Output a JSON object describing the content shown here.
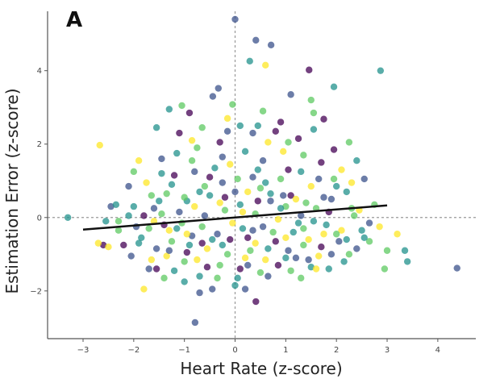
{
  "chart_data": {
    "type": "scatter",
    "panel_label": "A",
    "title": "",
    "xlabel": "Heart Rate (z-score)",
    "ylabel": "Estimation Error (z-score)",
    "xlim": [
      -3.7,
      4.75
    ],
    "ylim": [
      -3.3,
      5.75
    ],
    "xticks": [
      -3,
      -2,
      -1,
      0,
      1,
      2,
      3,
      4
    ],
    "yticks": [
      -2,
      0,
      2,
      4
    ],
    "xtick_labels": [
      "−3",
      "−2",
      "−1",
      "0",
      "1",
      "2",
      "3",
      "4"
    ],
    "ytick_labels": [
      "−2",
      "0",
      "2",
      "4"
    ],
    "grid": false,
    "reference_lines": [
      {
        "orientation": "horizontal",
        "value": 0,
        "style": "dashed",
        "color": "#999999"
      },
      {
        "orientation": "vertical",
        "value": 0,
        "style": "dashed",
        "color": "#999999"
      }
    ],
    "regression_line": {
      "x": [
        -3.0,
        3.0
      ],
      "y": [
        -0.33,
        0.33
      ],
      "color": "#111111"
    },
    "colormap": [
      "#440154",
      "#3b528b",
      "#21918c",
      "#5ec962",
      "#fde725"
    ],
    "point_alpha": 0.75,
    "points": [
      [
        0.0,
        5.4,
        1
      ],
      [
        0.41,
        4.83,
        1
      ],
      [
        0.71,
        4.7,
        1
      ],
      [
        0.29,
        4.26,
        2
      ],
      [
        0.6,
        4.15,
        4
      ],
      [
        1.46,
        4.02,
        0
      ],
      [
        2.87,
        4.0,
        2
      ],
      [
        1.95,
        3.56,
        2
      ],
      [
        -0.33,
        3.52,
        1
      ],
      [
        -0.44,
        3.3,
        1
      ],
      [
        -0.05,
        3.08,
        3
      ],
      [
        -1.05,
        3.05,
        3
      ],
      [
        -1.3,
        2.95,
        2
      ],
      [
        -0.9,
        2.85,
        0
      ],
      [
        -0.15,
        2.7,
        4
      ],
      [
        0.55,
        2.9,
        3
      ],
      [
        0.9,
        2.6,
        0
      ],
      [
        1.5,
        3.2,
        3
      ],
      [
        1.55,
        2.85,
        3
      ],
      [
        1.1,
        3.35,
        1
      ],
      [
        1.75,
        2.68,
        0
      ],
      [
        2.25,
        2.05,
        3
      ],
      [
        1.55,
        2.4,
        2
      ],
      [
        0.1,
        2.5,
        2
      ],
      [
        0.35,
        2.3,
        1
      ],
      [
        0.8,
        2.35,
        0
      ],
      [
        -0.65,
        2.45,
        3
      ],
      [
        -1.55,
        2.45,
        2
      ],
      [
        -1.1,
        2.3,
        0
      ],
      [
        -0.3,
        2.05,
        0
      ],
      [
        0.65,
        2.05,
        4
      ],
      [
        1.25,
        2.15,
        0
      ],
      [
        -3.3,
        0.0,
        2
      ],
      [
        -2.67,
        1.97,
        4
      ],
      [
        -1.9,
        1.55,
        4
      ],
      [
        -1.45,
        1.6,
        1
      ],
      [
        -1.15,
        1.75,
        2
      ],
      [
        -0.75,
        1.9,
        3
      ],
      [
        -0.25,
        1.65,
        1
      ],
      [
        0.2,
        1.8,
        2
      ],
      [
        0.55,
        1.55,
        1
      ],
      [
        0.95,
        1.8,
        4
      ],
      [
        1.35,
        1.7,
        3
      ],
      [
        1.7,
        1.5,
        0
      ],
      [
        2.1,
        1.3,
        4
      ],
      [
        2.4,
        1.55,
        2
      ],
      [
        2.55,
        1.05,
        1
      ],
      [
        2.75,
        0.35,
        3
      ],
      [
        -2.1,
        0.85,
        1
      ],
      [
        -2.0,
        0.3,
        2
      ],
      [
        -1.75,
        0.95,
        4
      ],
      [
        -1.6,
        0.25,
        1
      ],
      [
        -1.35,
        0.65,
        3
      ],
      [
        -1.2,
        1.15,
        0
      ],
      [
        -0.95,
        0.45,
        2
      ],
      [
        -0.8,
        1.25,
        1
      ],
      [
        -0.6,
        0.85,
        3
      ],
      [
        -0.4,
        1.35,
        2
      ],
      [
        -0.2,
        0.55,
        0
      ],
      [
        0.05,
        1.05,
        3
      ],
      [
        0.25,
        0.7,
        4
      ],
      [
        0.45,
        1.3,
        2
      ],
      [
        0.7,
        0.45,
        1
      ],
      [
        0.9,
        1.05,
        3
      ],
      [
        1.1,
        0.6,
        0
      ],
      [
        1.3,
        1.25,
        2
      ],
      [
        1.5,
        0.85,
        4
      ],
      [
        1.75,
        0.55,
        1
      ],
      [
        1.95,
        1.05,
        3
      ],
      [
        2.2,
        0.7,
        2
      ],
      [
        2.45,
        0.2,
        4
      ],
      [
        2.65,
        -0.15,
        1
      ],
      [
        -2.6,
        -0.75,
        0
      ],
      [
        -2.5,
        -0.8,
        4
      ],
      [
        -2.3,
        -0.35,
        3
      ],
      [
        -2.2,
        -0.75,
        0
      ],
      [
        -2.05,
        -1.05,
        1
      ],
      [
        -1.85,
        -0.55,
        2
      ],
      [
        -1.7,
        -1.4,
        1
      ],
      [
        -1.55,
        -1.4,
        0
      ],
      [
        -1.4,
        -1.65,
        3
      ],
      [
        -1.8,
        -1.95,
        4
      ],
      [
        -1.35,
        -1.05,
        4
      ],
      [
        -1.15,
        -0.3,
        2
      ],
      [
        -1.0,
        -1.2,
        3
      ],
      [
        -0.85,
        -0.5,
        1
      ],
      [
        -0.7,
        -1.6,
        2
      ],
      [
        -0.55,
        -0.85,
        4
      ],
      [
        -0.45,
        -1.95,
        1
      ],
      [
        -0.3,
        -1.3,
        3
      ],
      [
        -0.1,
        -0.6,
        0
      ],
      [
        0.05,
        -1.65,
        2
      ],
      [
        0.2,
        -1.1,
        4
      ],
      [
        0.35,
        -0.35,
        1
      ],
      [
        0.5,
        -1.5,
        3
      ],
      [
        0.65,
        -0.85,
        2
      ],
      [
        0.85,
        -1.3,
        0
      ],
      [
        1.0,
        -0.55,
        4
      ],
      [
        1.2,
        -1.1,
        1
      ],
      [
        1.35,
        -0.3,
        3
      ],
      [
        1.5,
        -1.35,
        2
      ],
      [
        1.7,
        -0.8,
        0
      ],
      [
        1.85,
        -1.4,
        2
      ],
      [
        2.05,
        -0.65,
        1
      ],
      [
        2.25,
        -1.0,
        3
      ],
      [
        2.5,
        -0.35,
        2
      ],
      [
        2.65,
        -0.65,
        3
      ],
      [
        2.85,
        -0.25,
        4
      ],
      [
        3.0,
        -0.9,
        3
      ],
      [
        3.2,
        -0.45,
        4
      ],
      [
        3.35,
        -0.9,
        2
      ],
      [
        3.4,
        -1.2,
        2
      ],
      [
        2.95,
        -1.4,
        3
      ],
      [
        4.38,
        -1.38,
        1
      ],
      [
        -0.79,
        -2.86,
        1
      ],
      [
        0.41,
        -2.29,
        0
      ],
      [
        -0.7,
        -2.05,
        1
      ],
      [
        0.2,
        -1.95,
        1
      ],
      [
        -1.0,
        -1.75,
        2
      ],
      [
        0.0,
        -1.85,
        2
      ],
      [
        -2.3,
        -0.1,
        3
      ],
      [
        -2.1,
        0.05,
        2
      ],
      [
        -1.95,
        -0.25,
        1
      ],
      [
        -1.6,
        -0.1,
        4
      ],
      [
        -1.5,
        0.45,
        2
      ],
      [
        -1.25,
        -0.65,
        3
      ],
      [
        -1.1,
        0.15,
        1
      ],
      [
        -0.95,
        -0.95,
        0
      ],
      [
        -0.8,
        0.3,
        4
      ],
      [
        -0.65,
        -0.25,
        3
      ],
      [
        -0.5,
        0.6,
        2
      ],
      [
        -0.35,
        -0.45,
        1
      ],
      [
        -0.2,
        0.2,
        3
      ],
      [
        -0.05,
        -0.15,
        4
      ],
      [
        0.1,
        0.35,
        2
      ],
      [
        0.25,
        -0.55,
        0
      ],
      [
        0.4,
        0.1,
        3
      ],
      [
        0.55,
        -0.25,
        1
      ],
      [
        0.7,
        0.65,
        2
      ],
      [
        0.85,
        -0.05,
        4
      ],
      [
        1.0,
        0.3,
        3
      ],
      [
        1.15,
        -0.4,
        2
      ],
      [
        1.3,
        0.05,
        1
      ],
      [
        1.45,
        -0.6,
        4
      ],
      [
        1.6,
        0.25,
        3
      ],
      [
        1.8,
        -0.2,
        2
      ],
      [
        1.9,
        0.5,
        1
      ],
      [
        2.1,
        -0.35,
        4
      ],
      [
        2.3,
        0.25,
        3
      ],
      [
        2.55,
        -0.55,
        2
      ],
      [
        -1.9,
        -0.7,
        2
      ],
      [
        -1.7,
        -0.3,
        3
      ],
      [
        -1.55,
        -0.85,
        1
      ],
      [
        -1.45,
        0.1,
        3
      ],
      [
        -1.3,
        -0.35,
        4
      ],
      [
        -1.2,
        -1.45,
        2
      ],
      [
        -1.05,
        -0.15,
        3
      ],
      [
        -0.9,
        -0.75,
        2
      ],
      [
        -0.75,
        -1.15,
        4
      ],
      [
        -0.6,
        0.05,
        1
      ],
      [
        -0.45,
        -0.6,
        2
      ],
      [
        -0.3,
        0.4,
        4
      ],
      [
        -0.15,
        -1.0,
        3
      ],
      [
        0.0,
        0.7,
        1
      ],
      [
        0.15,
        -0.3,
        2
      ],
      [
        0.3,
        -0.9,
        3
      ],
      [
        0.45,
        0.45,
        0
      ],
      [
        0.6,
        -1.15,
        4
      ],
      [
        0.75,
        -0.4,
        3
      ],
      [
        0.9,
        0.25,
        2
      ],
      [
        1.05,
        -0.9,
        1
      ],
      [
        1.2,
        0.5,
        4
      ],
      [
        1.35,
        -0.75,
        3
      ],
      [
        1.55,
        -0.1,
        2
      ],
      [
        1.65,
        -1.05,
        4
      ],
      [
        1.85,
        0.15,
        0
      ],
      [
        2.0,
        -0.45,
        3
      ],
      [
        2.15,
        -1.2,
        2
      ],
      [
        -1.25,
        0.9,
        2
      ],
      [
        -0.85,
        1.55,
        3
      ],
      [
        -0.5,
        1.1,
        0
      ],
      [
        -0.1,
        1.45,
        4
      ],
      [
        0.35,
        1.1,
        1
      ],
      [
        0.6,
        0.95,
        2
      ],
      [
        1.05,
        1.3,
        0
      ],
      [
        1.4,
        0.4,
        3
      ],
      [
        1.65,
        1.05,
        1
      ],
      [
        2.0,
        0.85,
        2
      ],
      [
        -1.65,
        0.6,
        3
      ],
      [
        -1.4,
        -0.2,
        0
      ],
      [
        -0.7,
        0.7,
        2
      ],
      [
        -0.25,
        0.95,
        1
      ],
      [
        0.15,
        0.15,
        4
      ],
      [
        0.5,
        0.8,
        3
      ],
      [
        0.95,
        0.6,
        1
      ],
      [
        1.25,
        -0.15,
        2
      ],
      [
        -2.45,
        0.3,
        1
      ],
      [
        -2.35,
        0.35,
        2
      ],
      [
        -1.8,
        0.05,
        0
      ],
      [
        -1.0,
        0.55,
        3
      ],
      [
        -0.55,
        -1.35,
        0
      ],
      [
        -0.25,
        -0.75,
        2
      ],
      [
        0.25,
        -1.3,
        1
      ],
      [
        0.8,
        -0.65,
        0
      ],
      [
        1.1,
        -1.45,
        3
      ],
      [
        1.45,
        -1.15,
        1
      ],
      [
        1.75,
        -0.45,
        4
      ],
      [
        2.4,
        -0.85,
        1
      ],
      [
        -2.7,
        -0.7,
        4
      ],
      [
        -2.55,
        -0.1,
        2
      ],
      [
        -1.65,
        -1.15,
        4
      ],
      [
        -1.3,
        -0.9,
        1
      ],
      [
        -0.95,
        -0.45,
        4
      ],
      [
        -0.65,
        -0.7,
        0
      ],
      [
        -0.35,
        -1.65,
        3
      ],
      [
        0.1,
        -1.4,
        0
      ],
      [
        0.4,
        -0.7,
        4
      ],
      [
        0.65,
        -1.6,
        1
      ],
      [
        1.0,
        -1.1,
        2
      ],
      [
        1.3,
        -1.65,
        3
      ],
      [
        1.6,
        -1.4,
        4
      ],
      [
        1.9,
        -1.0,
        1
      ],
      [
        2.2,
        -0.6,
        2
      ],
      [
        2.35,
        0.05,
        3
      ],
      [
        -0.15,
        2.35,
        1
      ],
      [
        0.45,
        2.5,
        2
      ],
      [
        -0.85,
        2.1,
        4
      ],
      [
        1.05,
        2.05,
        3
      ],
      [
        1.95,
        1.85,
        0
      ],
      [
        2.3,
        0.95,
        4
      ],
      [
        -1.45,
        1.2,
        2
      ],
      [
        -2.0,
        1.25,
        3
      ]
    ]
  }
}
